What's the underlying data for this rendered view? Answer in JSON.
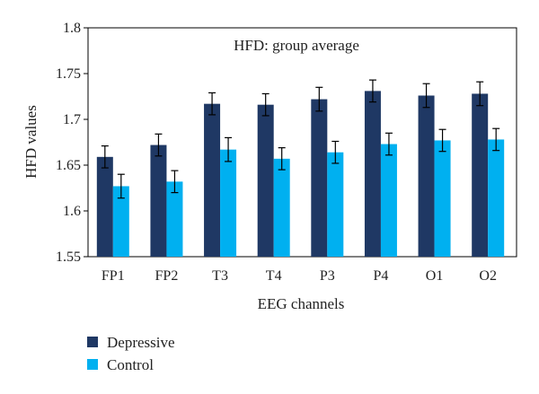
{
  "chart_data": {
    "type": "bar",
    "title": "HFD: group average",
    "xlabel": "EEG channels",
    "ylabel": "HFD values",
    "ylim": [
      1.55,
      1.8
    ],
    "yticks": [
      "1.55",
      "1.6",
      "1.65",
      "1.7",
      "1.75",
      "1.8"
    ],
    "grid": false,
    "legend_position": "bottom-left",
    "categories": [
      "FP1",
      "FP2",
      "T3",
      "T4",
      "P3",
      "P4",
      "O1",
      "O2"
    ],
    "series": [
      {
        "name": "Depressive",
        "color": "#1f3864",
        "values": [
          1.659,
          1.672,
          1.717,
          1.716,
          1.722,
          1.731,
          1.726,
          1.728
        ],
        "errors": [
          0.012,
          0.012,
          0.012,
          0.012,
          0.013,
          0.012,
          0.013,
          0.013
        ]
      },
      {
        "name": "Control",
        "color": "#00b0f0",
        "values": [
          1.627,
          1.632,
          1.667,
          1.657,
          1.664,
          1.673,
          1.677,
          1.678
        ],
        "errors": [
          0.013,
          0.012,
          0.013,
          0.012,
          0.012,
          0.012,
          0.012,
          0.012
        ]
      }
    ]
  }
}
